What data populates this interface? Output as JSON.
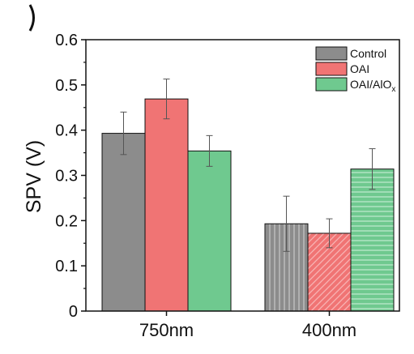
{
  "chart_data": {
    "type": "bar",
    "title": "",
    "xlabel": "",
    "ylabel": "SPV (V)",
    "ylim": [
      0,
      0.6
    ],
    "yticks": [
      "0",
      "0.1",
      "0.2",
      "0.3",
      "0.4",
      "0.5",
      "0.6"
    ],
    "grid": false,
    "legend_position": "top-right",
    "categories": [
      "750nm",
      "400nm"
    ],
    "series": [
      {
        "name": "Control",
        "values": [
          0.393,
          0.193
        ],
        "errors": [
          0.047,
          0.061
        ],
        "color": "#8c8c8c",
        "pattern": [
          "solid",
          "vertical-stripes"
        ]
      },
      {
        "name": "OAI",
        "values": [
          0.469,
          0.172
        ],
        "errors": [
          0.044,
          0.032
        ],
        "color": "#f07474",
        "pattern": [
          "solid",
          "diagonal-stripes"
        ]
      },
      {
        "name": "OAI/AlO",
        "subscript": "x",
        "values": [
          0.354,
          0.314
        ],
        "errors": [
          0.034,
          0.045
        ],
        "color": "#6fc98f",
        "pattern": [
          "solid",
          "horizontal-stripes"
        ]
      }
    ]
  }
}
